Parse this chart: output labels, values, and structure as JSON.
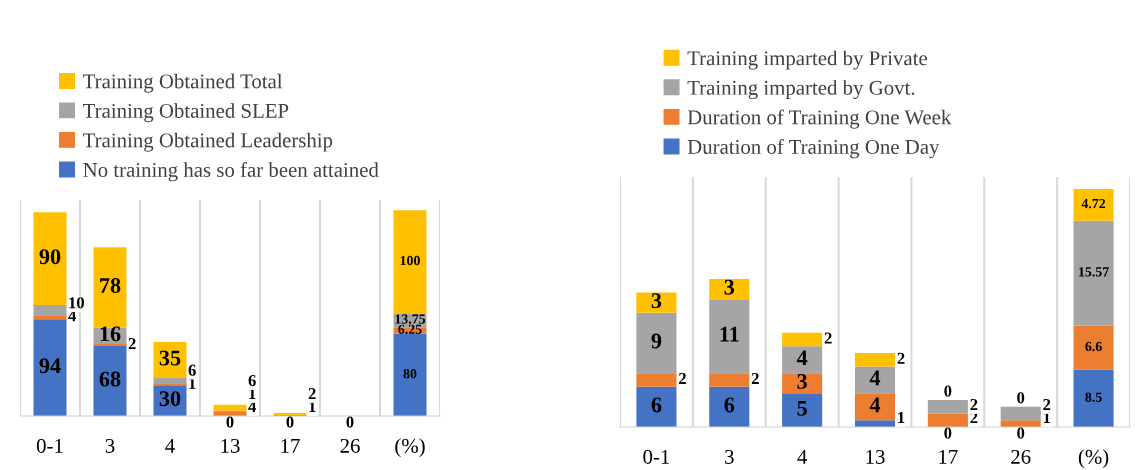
{
  "chart_data": [
    {
      "type": "bar",
      "stacked": true,
      "categories": [
        "0-1",
        "3",
        "4",
        "13",
        "17",
        "26",
        "(%)"
      ],
      "grid": "x",
      "legend": "top left",
      "series": [
        {
          "name": "No training has so far been attained",
          "color": "#4472c4",
          "values": [
            94,
            68,
            30,
            0,
            0,
            0,
            80
          ],
          "value_labels": [
            "94",
            "68",
            "30",
            "0",
            "0",
            "0",
            "80"
          ]
        },
        {
          "name": "Training Obtained Leadership",
          "color": "#ed7d31",
          "values": [
            4,
            2,
            1,
            4,
            1,
            0,
            6.25
          ],
          "value_labels": [
            "4",
            "2",
            "1",
            "4",
            "1",
            null,
            "6.25"
          ]
        },
        {
          "name": "Training Obtained SLEP",
          "color": "#a5a5a5",
          "values": [
            10,
            16,
            6,
            1,
            0,
            0,
            13.75
          ],
          "value_labels": [
            "10",
            "16",
            "6",
            "1",
            null,
            null,
            "13.75"
          ]
        },
        {
          "name": "Training Obtained Total",
          "color": "#ffc000",
          "values": [
            90,
            78,
            35,
            6,
            2,
            0,
            100
          ],
          "value_labels": [
            "90",
            "78",
            "35",
            "6",
            "2",
            null,
            "100"
          ]
        }
      ]
    },
    {
      "type": "bar",
      "stacked": true,
      "categories": [
        "0-1",
        "3",
        "4",
        "13",
        "17",
        "26",
        "(%)"
      ],
      "data_labels": true,
      "grid": "x",
      "legend": "top left",
      "series": [
        {
          "name": "Duration of Training One Day",
          "color": "#4472c4",
          "values": [
            6,
            6,
            5,
            1,
            0,
            0,
            8.5
          ]
        },
        {
          "name": "Duration of Training One Week",
          "color": "#ed7d31",
          "values": [
            2,
            2,
            3,
            4,
            2,
            1,
            6.6
          ]
        },
        {
          "name": "Training imparted by Govt.",
          "color": "#a5a5a5",
          "values": [
            9,
            11,
            4,
            4,
            2,
            2,
            15.57
          ]
        },
        {
          "name": "Training imparted by Private",
          "color": "#ffc000",
          "values": [
            3,
            3,
            2,
            2,
            0,
            0,
            4.72
          ]
        }
      ]
    }
  ]
}
